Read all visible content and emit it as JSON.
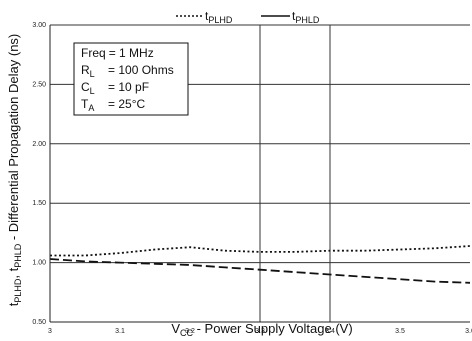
{
  "chart_data": {
    "type": "line",
    "title": "",
    "xlabel": {
      "main": "V",
      "sub": "CC",
      "rest": " - Power Supply Voltage (V)"
    },
    "ylabel": {
      "t1": "t",
      "s1": "PLHD",
      "sep": ", t",
      "s2": "PHLD",
      "rest": " - Differential Propagation Delay (ns)"
    },
    "xlim": [
      3.0,
      3.6
    ],
    "ylim": [
      0.5,
      3.0
    ],
    "x_ticks": [
      "3",
      "3.1",
      "3.2",
      "3.3",
      "3.4",
      "3.5",
      "3.6"
    ],
    "y_ticks": [
      "0.50",
      "1.00",
      "1.50",
      "2.00",
      "2.50",
      "3.00"
    ],
    "x_tick_values": [
      3.0,
      3.1,
      3.2,
      3.3,
      3.4,
      3.5,
      3.6
    ],
    "y_tick_values": [
      0.5,
      1.0,
      1.5,
      2.0,
      2.5,
      3.0
    ],
    "y_grid": [
      1.0,
      1.5,
      2.0,
      2.5,
      3.0
    ],
    "x_grid": [
      3.3,
      3.4
    ],
    "legend_placement": "top",
    "series": [
      {
        "name": {
          "main": "t",
          "sub": "PLHD"
        },
        "style": "dotted",
        "x": [
          3.0,
          3.05,
          3.1,
          3.15,
          3.2,
          3.25,
          3.3,
          3.35,
          3.4,
          3.45,
          3.5,
          3.55,
          3.6
        ],
        "values": [
          1.06,
          1.06,
          1.08,
          1.11,
          1.13,
          1.1,
          1.09,
          1.09,
          1.1,
          1.1,
          1.11,
          1.12,
          1.14
        ]
      },
      {
        "name": {
          "main": "t",
          "sub": "PHLD"
        },
        "style": "dashed",
        "x": [
          3.0,
          3.05,
          3.1,
          3.15,
          3.2,
          3.25,
          3.3,
          3.35,
          3.4,
          3.45,
          3.5,
          3.55,
          3.6
        ],
        "values": [
          1.03,
          1.01,
          1.0,
          0.99,
          0.98,
          0.96,
          0.94,
          0.92,
          0.9,
          0.88,
          0.86,
          0.84,
          0.83
        ]
      }
    ],
    "conditions": [
      {
        "label": "Freq",
        "sub": "",
        "value": "= 1 MHz"
      },
      {
        "label": "R",
        "sub": "L",
        "value": "= 100 Ohms"
      },
      {
        "label": "C",
        "sub": "L",
        "value": "= 10 pF"
      },
      {
        "label": "T",
        "sub": "A",
        "value": "= 25°C"
      }
    ]
  }
}
